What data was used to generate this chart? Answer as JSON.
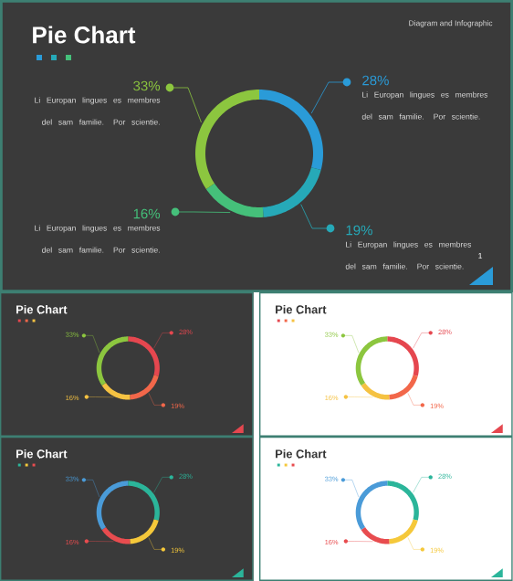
{
  "chart_data": [
    {
      "type": "donut",
      "title": "Pie Chart",
      "subtitle": "Diagram and Infographic",
      "annotations": [
        "1"
      ],
      "categories": [
        "Li Europan lingues es membres del sam familie. Por scientie.",
        "Li Europan lingues es membres del sam familie. Por scientie.",
        "Li Europan lingues es membres del sam familie. Por scientie.",
        "Li Europan lingues es membres del sam familie. Por scientie."
      ],
      "values": [
        28,
        19,
        16,
        33
      ],
      "value_labels": [
        "28%",
        "19%",
        "16%",
        "33%"
      ],
      "colors": [
        "#2a9bd8",
        "#26a9b8",
        "#45c07a",
        "#8cc63f"
      ]
    },
    {
      "type": "donut",
      "title": "Pie Chart",
      "categories": [
        null,
        null,
        null,
        null
      ],
      "values": [
        28,
        19,
        16,
        33
      ],
      "value_labels": [
        "28%",
        "19%",
        "16%",
        "33%"
      ],
      "colors": [
        "#e5474f",
        "#f2674a",
        "#f5c242",
        "#8cc63f"
      ]
    },
    {
      "type": "donut",
      "title": "Pie Chart",
      "categories": [
        null,
        null,
        null,
        null
      ],
      "values": [
        28,
        19,
        16,
        33
      ],
      "value_labels": [
        "28%",
        "19%",
        "16%",
        "33%"
      ],
      "colors": [
        "#e5474f",
        "#f2674a",
        "#f5c242",
        "#8cc63f"
      ]
    },
    {
      "type": "donut",
      "title": "Pie Chart",
      "categories": [
        null,
        null,
        null,
        null
      ],
      "values": [
        28,
        19,
        16,
        33
      ],
      "value_labels": [
        "28%",
        "19%",
        "16%",
        "33%"
      ],
      "colors": [
        "#2bb59a",
        "#f5c83a",
        "#e84c4f",
        "#4a9bd8"
      ]
    },
    {
      "type": "donut",
      "title": "Pie Chart",
      "categories": [
        null,
        null,
        null,
        null
      ],
      "values": [
        28,
        19,
        16,
        33
      ],
      "value_labels": [
        "28%",
        "19%",
        "16%",
        "33%"
      ],
      "colors": [
        "#2bb59a",
        "#f5c83a",
        "#e84c4f",
        "#4a9bd8"
      ]
    }
  ]
}
